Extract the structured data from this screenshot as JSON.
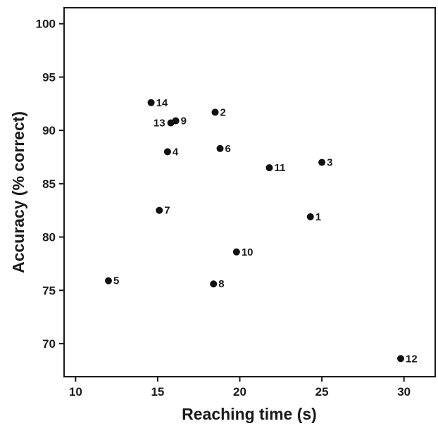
{
  "chart_data": {
    "type": "scatter",
    "title": "",
    "xlabel": "Reaching time (s)",
    "ylabel": "Accuracy (% correct)",
    "xlim": [
      9.3,
      31.9
    ],
    "ylim": [
      66.9,
      101.5
    ],
    "xticks": [
      10,
      15,
      20,
      25,
      30
    ],
    "yticks": [
      70,
      75,
      80,
      85,
      90,
      95,
      100
    ],
    "grid": false,
    "legend": "none",
    "marker_color": "#111111",
    "points": [
      {
        "label": "1",
        "x": 24.3,
        "y": 81.9,
        "label_side": "right"
      },
      {
        "label": "2",
        "x": 18.5,
        "y": 91.7,
        "label_side": "right"
      },
      {
        "label": "3",
        "x": 25.0,
        "y": 87.0,
        "label_side": "right"
      },
      {
        "label": "4",
        "x": 15.6,
        "y": 88.0,
        "label_side": "right"
      },
      {
        "label": "5",
        "x": 12.0,
        "y": 75.9,
        "label_side": "right"
      },
      {
        "label": "6",
        "x": 18.8,
        "y": 88.3,
        "label_side": "right"
      },
      {
        "label": "7",
        "x": 15.1,
        "y": 82.5,
        "label_side": "right"
      },
      {
        "label": "8",
        "x": 18.4,
        "y": 75.6,
        "label_side": "right"
      },
      {
        "label": "9",
        "x": 16.1,
        "y": 90.9,
        "label_side": "right"
      },
      {
        "label": "10",
        "x": 19.8,
        "y": 78.6,
        "label_side": "right"
      },
      {
        "label": "11",
        "x": 21.8,
        "y": 86.5,
        "label_side": "right"
      },
      {
        "label": "12",
        "x": 29.8,
        "y": 68.6,
        "label_side": "right"
      },
      {
        "label": "13",
        "x": 15.8,
        "y": 90.7,
        "label_side": "left"
      },
      {
        "label": "14",
        "x": 14.6,
        "y": 92.6,
        "label_side": "right"
      }
    ]
  }
}
